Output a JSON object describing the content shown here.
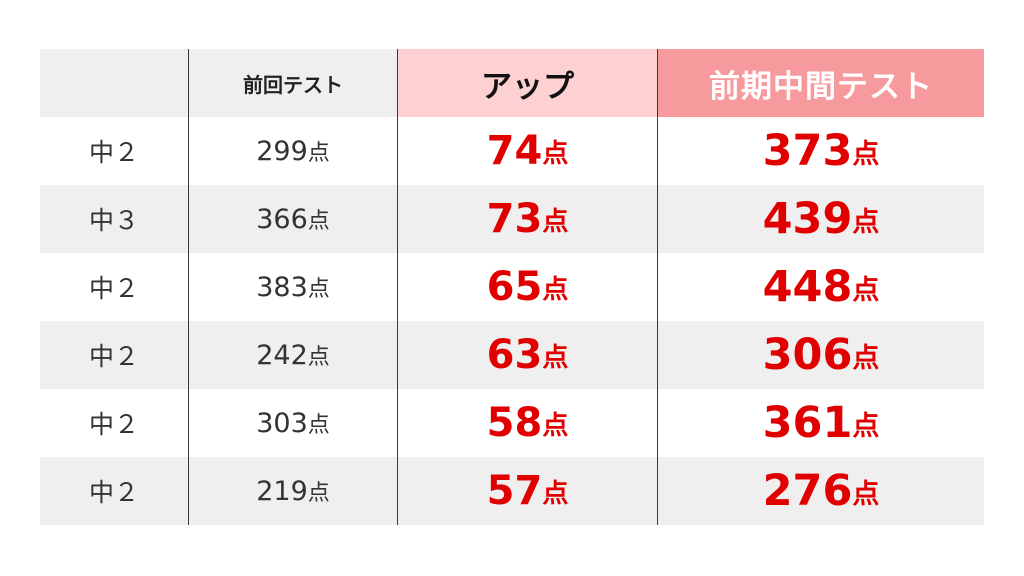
{
  "headers": {
    "grade": "",
    "previous": "前回テスト",
    "up": "アップ",
    "midterm": "前期中間テスト"
  },
  "unit": "点",
  "colors": {
    "accent_red": "#e00000",
    "header_up_bg": "#fdd0d2",
    "header_midterm_bg": "#f79a9e",
    "stripe_gray": "#efefef"
  },
  "rows": [
    {
      "grade": "中２",
      "previous": "299",
      "up": "74",
      "midterm": "373"
    },
    {
      "grade": "中３",
      "previous": "366",
      "up": "73",
      "midterm": "439"
    },
    {
      "grade": "中２",
      "previous": "383",
      "up": "65",
      "midterm": "448"
    },
    {
      "grade": "中２",
      "previous": "242",
      "up": "63",
      "midterm": "306"
    },
    {
      "grade": "中２",
      "previous": "303",
      "up": "58",
      "midterm": "361"
    },
    {
      "grade": "中２",
      "previous": "219",
      "up": "57",
      "midterm": "276"
    }
  ]
}
